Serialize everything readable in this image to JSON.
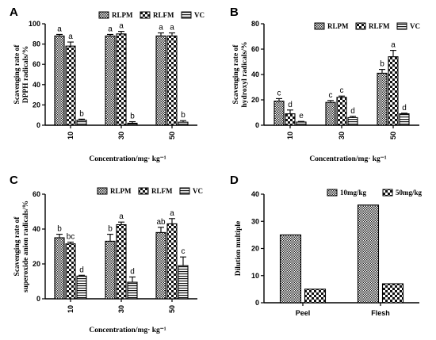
{
  "chart_data": [
    {
      "panel": "A",
      "type": "bar",
      "xlabel": "Concentration/mg· kg⁻¹",
      "ylabel": "Scavenging rate of DPPH radicals/%",
      "ylim": [
        0,
        100
      ],
      "yticks": [
        0,
        20,
        40,
        60,
        80,
        100
      ],
      "categories": [
        "10",
        "30",
        "50"
      ],
      "legend_position": "top",
      "series": [
        {
          "name": "RLPM",
          "pattern": "checker",
          "values": [
            88,
            88,
            88
          ],
          "errors": [
            1.5,
            1.5,
            3
          ],
          "letters": [
            "a",
            "a",
            "a"
          ]
        },
        {
          "name": "RLFM",
          "pattern": "bigchecker",
          "values": [
            78,
            90,
            88
          ],
          "errors": [
            4,
            2.5,
            3
          ],
          "letters": [
            "a",
            "a",
            "a"
          ]
        },
        {
          "name": "VC",
          "pattern": "hlines",
          "values": [
            5,
            2,
            3
          ],
          "errors": [
            1,
            1.5,
            1.5
          ],
          "letters": [
            "b",
            "b",
            "b"
          ]
        }
      ]
    },
    {
      "panel": "B",
      "type": "bar",
      "xlabel": "Concentration/mg· kg⁻¹",
      "ylabel": "Scavenging rate of hydroxyl radicals/%",
      "ylim": [
        0,
        80
      ],
      "yticks": [
        0,
        20,
        40,
        60,
        80
      ],
      "categories": [
        "10",
        "30",
        "50"
      ],
      "legend_position": "top",
      "series": [
        {
          "name": "RLPM",
          "pattern": "checker",
          "values": [
            19,
            18,
            41
          ],
          "errors": [
            2,
            1.5,
            3
          ],
          "letters": [
            "c",
            "c",
            "b"
          ]
        },
        {
          "name": "RLFM",
          "pattern": "bigchecker",
          "values": [
            9,
            22,
            54
          ],
          "errors": [
            3,
            1,
            5
          ],
          "letters": [
            "d",
            "c",
            "a"
          ]
        },
        {
          "name": "VC",
          "pattern": "hlines",
          "values": [
            2.5,
            6,
            9
          ],
          "errors": [
            0.5,
            1,
            0.5
          ],
          "letters": [
            "e",
            "d",
            "d"
          ]
        }
      ]
    },
    {
      "panel": "C",
      "type": "bar",
      "xlabel": "Concentration/mg· kg⁻¹",
      "ylabel": "Scavenging rate of superoxide anion radicals/%",
      "ylim": [
        0,
        60
      ],
      "yticks": [
        0,
        20,
        40,
        60
      ],
      "categories": [
        "10",
        "30",
        "50"
      ],
      "legend_position": "top",
      "series": [
        {
          "name": "RLPM",
          "pattern": "checker",
          "values": [
            35,
            33,
            38
          ],
          "errors": [
            2,
            4,
            3
          ],
          "letters": [
            "b",
            "b",
            "ab"
          ]
        },
        {
          "name": "RLFM",
          "pattern": "bigchecker",
          "values": [
            31.5,
            42.5,
            43
          ],
          "errors": [
            1,
            1.5,
            3
          ],
          "letters": [
            "bc",
            "a",
            "a"
          ]
        },
        {
          "name": "VC",
          "pattern": "hlines",
          "values": [
            13,
            9.5,
            19
          ],
          "errors": [
            0.5,
            3,
            5
          ],
          "letters": [
            "d",
            "d",
            "c"
          ]
        }
      ]
    },
    {
      "panel": "D",
      "type": "bar",
      "xlabel": "",
      "ylabel": "Dilution multiple",
      "ylim": [
        0,
        40
      ],
      "yticks": [
        0,
        10,
        20,
        30,
        40
      ],
      "categories": [
        "Peel",
        "Flesh"
      ],
      "legend_position": "top-right",
      "series": [
        {
          "name": "10mg/kg",
          "pattern": "checker",
          "values": [
            25,
            36
          ],
          "errors": [
            0,
            0
          ],
          "letters": [
            "",
            ""
          ]
        },
        {
          "name": "50mg/kg",
          "pattern": "bigchecker",
          "values": [
            5,
            7
          ],
          "errors": [
            0,
            0
          ],
          "letters": [
            "",
            ""
          ]
        }
      ]
    }
  ]
}
